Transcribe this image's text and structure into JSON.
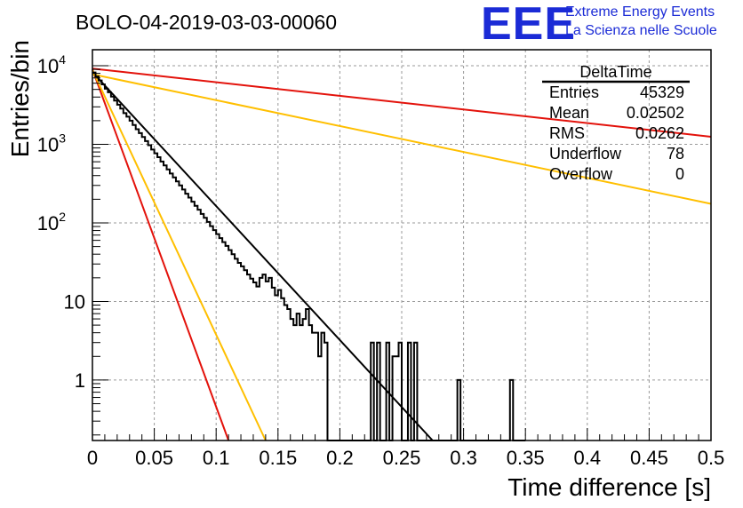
{
  "header": {
    "run_title": "BOLO-04-2019-03-03-00060",
    "logo": "EEE",
    "logo_line1": "Extreme Energy Events",
    "logo_line2": "La Scienza nelle Scuole"
  },
  "stats_box": {
    "title": "DeltaTime",
    "rows": [
      {
        "label": "Entries",
        "value": "45329"
      },
      {
        "label": "Mean",
        "value": "0.02502"
      },
      {
        "label": "RMS",
        "value": "0.0262"
      },
      {
        "label": "Underflow",
        "value": "78"
      },
      {
        "label": "Overflow",
        "value": "0"
      }
    ]
  },
  "chart_data": {
    "type": "line",
    "title": "BOLO-04-2019-03-03-00060",
    "xlabel": "Time difference [s]",
    "ylabel": "Entries/bin",
    "xlim": [
      0,
      0.5
    ],
    "ylim": [
      0.17,
      16000
    ],
    "yscale": "log",
    "grid": true,
    "x_ticks": [
      0,
      0.05,
      0.1,
      0.15,
      0.2,
      0.25,
      0.3,
      0.35,
      0.4,
      0.45,
      0.5
    ],
    "x_tick_labels": [
      "0",
      "0.05",
      "0.1",
      "0.15",
      "0.2",
      "0.25",
      "0.3",
      "0.35",
      "0.4",
      "0.45",
      "0.5"
    ],
    "y_ticks": [
      {
        "value": 1,
        "base": "1",
        "exp": ""
      },
      {
        "value": 10,
        "base": "10",
        "exp": ""
      },
      {
        "value": 100,
        "base": "10",
        "exp": "2"
      },
      {
        "value": 1000,
        "base": "10",
        "exp": "3"
      },
      {
        "value": 10000,
        "base": "10",
        "exp": "4"
      }
    ],
    "histogram": {
      "bin_width": 0.0025,
      "color": "#000000",
      "counts": [
        8200,
        7300,
        6500,
        5800,
        5100,
        4600,
        4050,
        3600,
        3200,
        2850,
        2500,
        2250,
        2000,
        1760,
        1560,
        1390,
        1240,
        1100,
        975,
        860,
        770,
        685,
        605,
        540,
        480,
        425,
        380,
        337,
        300,
        266,
        235,
        210,
        186,
        165,
        147,
        130,
        116,
        103,
        91,
        81,
        72,
        64,
        57,
        51,
        45,
        40,
        35,
        31,
        28,
        25,
        22,
        19.5,
        17.5,
        15.5,
        20,
        22,
        18,
        20,
        15,
        12,
        14,
        11,
        9,
        8,
        6,
        5,
        7,
        5,
        6,
        8,
        5,
        4,
        4,
        2,
        4,
        3,
        0,
        0,
        0,
        0,
        0,
        0,
        0,
        0,
        0,
        0,
        0,
        0,
        0,
        0,
        3,
        0.17,
        3,
        0,
        0,
        3,
        0,
        2,
        2,
        3,
        0,
        0,
        3,
        0,
        3,
        0,
        0,
        0,
        0,
        0,
        0,
        0,
        0,
        0,
        0,
        0,
        0,
        0,
        1,
        0,
        0,
        0,
        0,
        0,
        0,
        0,
        0,
        0,
        0,
        0,
        0,
        0,
        0,
        0,
        0,
        1,
        0,
        0,
        0,
        0
      ]
    },
    "series": [
      {
        "color": "#000000",
        "x": [
          0,
          0.275
        ],
        "y": [
          8300,
          0.17
        ]
      },
      {
        "color": "#e3120b",
        "x": [
          0,
          0.5
        ],
        "y": [
          9200,
          1250
        ]
      },
      {
        "color": "#e3120b",
        "x": [
          0,
          0.11
        ],
        "y": [
          9000,
          0.17
        ]
      },
      {
        "color": "#ffbf00",
        "x": [
          0,
          0.5
        ],
        "y": [
          7800,
          175
        ]
      },
      {
        "color": "#ffbf00",
        "x": [
          0,
          0.14
        ],
        "y": [
          8800,
          0.17
        ]
      }
    ]
  }
}
